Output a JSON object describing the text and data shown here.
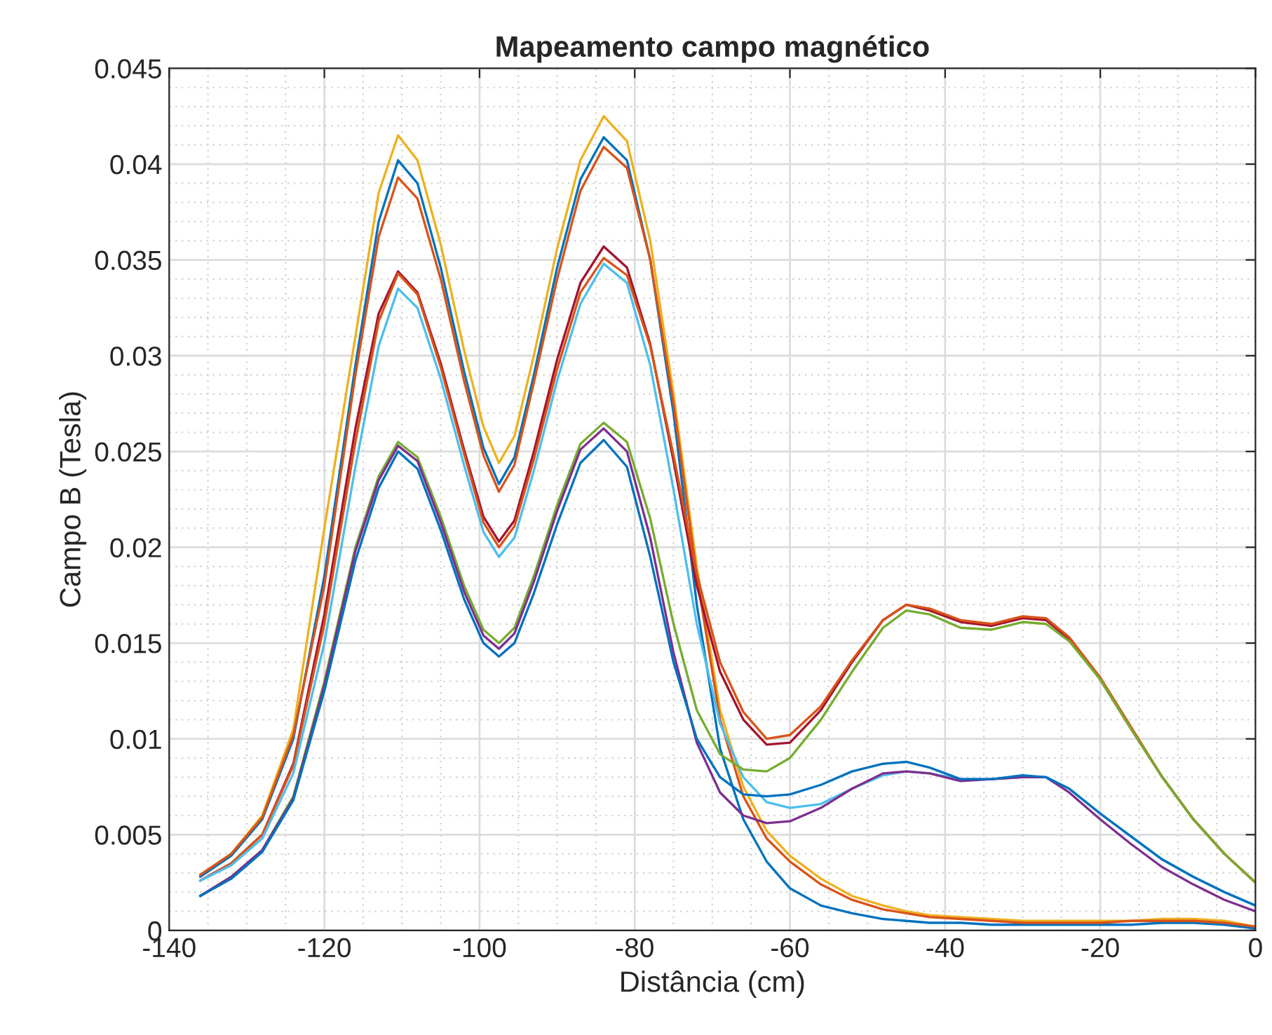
{
  "chart_data": {
    "type": "line",
    "title": "Mapeamento campo magnético",
    "xlabel": "Distância (cm)",
    "ylabel": "Campo B (Tesla)",
    "x": [
      -136,
      -132,
      -128,
      -124,
      -120,
      -116,
      -113,
      -110.5,
      -108,
      -105,
      -102,
      -99.5,
      -97.5,
      -95.5,
      -93,
      -90,
      -87,
      -84,
      -81,
      -78,
      -75,
      -72,
      -69,
      -66,
      -63,
      -60,
      -56,
      -52,
      -48,
      -45,
      -42,
      -38,
      -34,
      -30,
      -27,
      -24,
      -20,
      -16,
      -12,
      -8,
      -4,
      0
    ],
    "series": [
      {
        "color": "#edb120",
        "values": [
          0.0029,
          0.004,
          0.006,
          0.0105,
          0.021,
          0.031,
          0.0385,
          0.0415,
          0.0402,
          0.0358,
          0.0303,
          0.0263,
          0.0244,
          0.0258,
          0.03,
          0.0356,
          0.0402,
          0.0425,
          0.0412,
          0.036,
          0.028,
          0.019,
          0.0115,
          0.0075,
          0.0052,
          0.0039,
          0.0027,
          0.0018,
          0.0013,
          0.001,
          0.0008,
          0.0007,
          0.0006,
          0.0005,
          0.0005,
          0.0005,
          0.0005,
          0.0005,
          0.0006,
          0.0006,
          0.0005,
          0.0002
        ]
      },
      {
        "color": "#0072bd",
        "values": [
          0.0028,
          0.0039,
          0.0058,
          0.01,
          0.0185,
          0.0295,
          0.037,
          0.0402,
          0.039,
          0.0346,
          0.0292,
          0.0252,
          0.0233,
          0.0247,
          0.029,
          0.0346,
          0.0392,
          0.0414,
          0.0402,
          0.035,
          0.027,
          0.017,
          0.0095,
          0.0058,
          0.0036,
          0.0022,
          0.0013,
          0.0009,
          0.0006,
          0.0005,
          0.0004,
          0.0004,
          0.0003,
          0.0003,
          0.0003,
          0.0003,
          0.0003,
          0.0003,
          0.0004,
          0.0004,
          0.0003,
          0.0001
        ]
      },
      {
        "color": "#d95319",
        "values": [
          0.0029,
          0.004,
          0.0059,
          0.0102,
          0.018,
          0.029,
          0.0362,
          0.0393,
          0.0382,
          0.034,
          0.0287,
          0.0248,
          0.0229,
          0.0243,
          0.0286,
          0.034,
          0.0386,
          0.0409,
          0.0398,
          0.035,
          0.0275,
          0.0185,
          0.011,
          0.007,
          0.0048,
          0.0036,
          0.0024,
          0.0016,
          0.0011,
          0.0009,
          0.0007,
          0.0006,
          0.0005,
          0.0004,
          0.0004,
          0.0004,
          0.0004,
          0.0005,
          0.0005,
          0.0005,
          0.0004,
          0.0002
        ]
      },
      {
        "color": "#a2142f",
        "values": [
          0.0026,
          0.0035,
          0.005,
          0.0087,
          0.0165,
          0.0262,
          0.0322,
          0.0344,
          0.0333,
          0.0296,
          0.0251,
          0.0216,
          0.0203,
          0.0214,
          0.025,
          0.0298,
          0.0338,
          0.0357,
          0.0346,
          0.0306,
          0.0245,
          0.018,
          0.0135,
          0.011,
          0.0097,
          0.0098,
          0.0115,
          0.014,
          0.0162,
          0.017,
          0.0167,
          0.0161,
          0.0159,
          0.0163,
          0.0162,
          0.0152,
          0.0131,
          0.0105,
          0.008,
          0.0058,
          0.004,
          0.0025
        ]
      },
      {
        "color": "#d95319",
        "values": [
          0.0026,
          0.0035,
          0.005,
          0.0086,
          0.016,
          0.0255,
          0.0318,
          0.0343,
          0.0332,
          0.0294,
          0.0249,
          0.0213,
          0.02,
          0.0211,
          0.0246,
          0.0293,
          0.0333,
          0.0351,
          0.0342,
          0.0305,
          0.0248,
          0.0186,
          0.014,
          0.0114,
          0.01,
          0.0102,
          0.0117,
          0.0141,
          0.0162,
          0.017,
          0.0168,
          0.0162,
          0.016,
          0.0164,
          0.0163,
          0.0153,
          0.0132,
          0.0106,
          0.008,
          0.0058,
          0.004,
          0.0025
        ]
      },
      {
        "color": "#4dbeee",
        "values": [
          0.0026,
          0.0034,
          0.0048,
          0.0082,
          0.015,
          0.0242,
          0.0305,
          0.0335,
          0.0325,
          0.0288,
          0.0243,
          0.0208,
          0.0195,
          0.0205,
          0.024,
          0.0287,
          0.0327,
          0.0348,
          0.0338,
          0.0295,
          0.023,
          0.016,
          0.0108,
          0.008,
          0.0067,
          0.0064,
          0.0066,
          0.0074,
          0.0081,
          0.0083,
          0.0082,
          0.0079,
          0.0079,
          0.008,
          0.008,
          0.0074,
          0.0061,
          0.0049,
          0.0037,
          0.0028,
          0.002,
          0.0013
        ]
      },
      {
        "color": "#77ac30",
        "values": [
          0.0018,
          0.0028,
          0.0042,
          0.007,
          0.013,
          0.02,
          0.0237,
          0.0255,
          0.0247,
          0.0216,
          0.018,
          0.0157,
          0.015,
          0.0158,
          0.0185,
          0.0222,
          0.0254,
          0.0265,
          0.0255,
          0.0215,
          0.016,
          0.0115,
          0.0092,
          0.0084,
          0.0083,
          0.009,
          0.011,
          0.0135,
          0.0158,
          0.0167,
          0.0165,
          0.0158,
          0.0157,
          0.0161,
          0.016,
          0.0151,
          0.0131,
          0.0105,
          0.008,
          0.0058,
          0.004,
          0.0025
        ]
      },
      {
        "color": "#7e2f8e",
        "values": [
          0.0018,
          0.0028,
          0.0042,
          0.0069,
          0.0128,
          0.0198,
          0.0235,
          0.0253,
          0.0245,
          0.0213,
          0.0177,
          0.0154,
          0.0147,
          0.0155,
          0.0182,
          0.0219,
          0.0251,
          0.0262,
          0.025,
          0.0205,
          0.0145,
          0.0098,
          0.0072,
          0.006,
          0.0056,
          0.0057,
          0.0064,
          0.0074,
          0.0082,
          0.0083,
          0.0082,
          0.0078,
          0.0079,
          0.008,
          0.008,
          0.0072,
          0.0058,
          0.0045,
          0.0033,
          0.0024,
          0.0016,
          0.001
        ]
      },
      {
        "color": "#0072bd",
        "values": [
          0.0018,
          0.0027,
          0.0041,
          0.0068,
          0.0125,
          0.0193,
          0.0231,
          0.025,
          0.0241,
          0.0209,
          0.0173,
          0.015,
          0.0143,
          0.015,
          0.0176,
          0.0212,
          0.0244,
          0.0256,
          0.0242,
          0.0195,
          0.014,
          0.01,
          0.008,
          0.0071,
          0.007,
          0.0071,
          0.0076,
          0.0083,
          0.0087,
          0.0088,
          0.0085,
          0.0079,
          0.0079,
          0.0081,
          0.008,
          0.0074,
          0.0061,
          0.0049,
          0.0037,
          0.0028,
          0.002,
          0.0013
        ]
      }
    ],
    "xlim": [
      -140,
      0
    ],
    "xticks": [
      -140,
      -120,
      -100,
      -80,
      -60,
      -40,
      -20,
      0
    ],
    "ylim": [
      0,
      0.045
    ],
    "yticks": [
      0,
      0.005,
      0.01,
      0.015,
      0.02,
      0.025,
      0.03,
      0.035,
      0.04,
      0.045
    ],
    "grid": true,
    "marker": "none",
    "line_style": "solid",
    "legend": false
  }
}
